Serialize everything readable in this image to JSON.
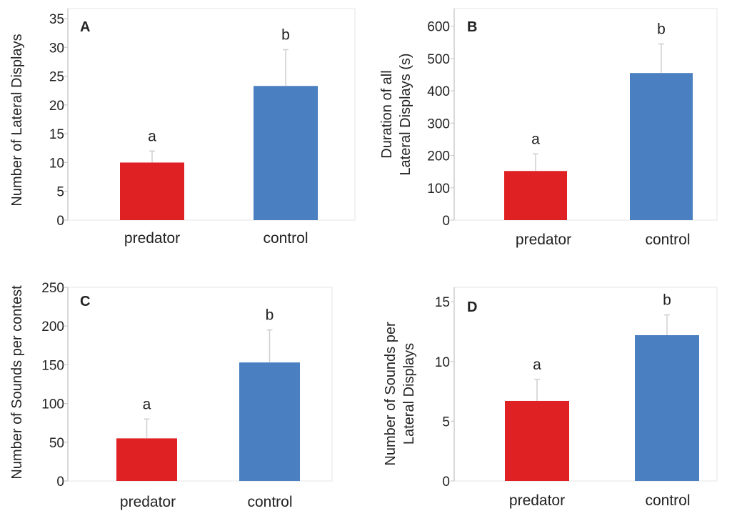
{
  "colors": {
    "predator": "#e02124",
    "control": "#4a7fc1",
    "axis": "#cccccc",
    "errorbar": "#cfcfcf"
  },
  "chart_data": [
    {
      "panel": "A",
      "type": "bar",
      "categories": [
        "predator",
        "control"
      ],
      "values": [
        10,
        23.3
      ],
      "errors": [
        2,
        6.3
      ],
      "significance": [
        "a",
        "b"
      ],
      "ylabel": "Number of Lateral Displays",
      "ylim": [
        0,
        35
      ],
      "yticks": [
        "0",
        "5",
        "10",
        "15",
        "20",
        "25",
        "30",
        "35"
      ]
    },
    {
      "panel": "B",
      "type": "bar",
      "categories": [
        "predator",
        "control"
      ],
      "values": [
        152,
        455
      ],
      "errors": [
        53,
        90
      ],
      "significance": [
        "a",
        "b"
      ],
      "ylabel": [
        "Duration of all",
        "Lateral Displays (s)"
      ],
      "ylim": [
        0,
        650
      ],
      "yticks": [
        "0",
        "100",
        "200",
        "300",
        "400",
        "500",
        "600"
      ]
    },
    {
      "panel": "C",
      "type": "bar",
      "categories": [
        "predator",
        "control"
      ],
      "values": [
        55,
        153
      ],
      "errors": [
        25,
        42
      ],
      "significance": [
        "a",
        "b"
      ],
      "ylabel": "Number of Sounds per contest",
      "ylim": [
        0,
        250
      ],
      "yticks": [
        "0",
        "50",
        "100",
        "150",
        "200",
        "250"
      ]
    },
    {
      "panel": "D",
      "type": "bar",
      "categories": [
        "predator",
        "control"
      ],
      "values": [
        6.7,
        12.2
      ],
      "errors": [
        1.8,
        1.7
      ],
      "significance": [
        "a",
        "b"
      ],
      "ylabel": [
        "Number of Sounds per",
        "Lateral Displays"
      ],
      "ylim": [
        0,
        18
      ],
      "yticks": [
        "0",
        "5",
        "10",
        "15"
      ]
    }
  ]
}
